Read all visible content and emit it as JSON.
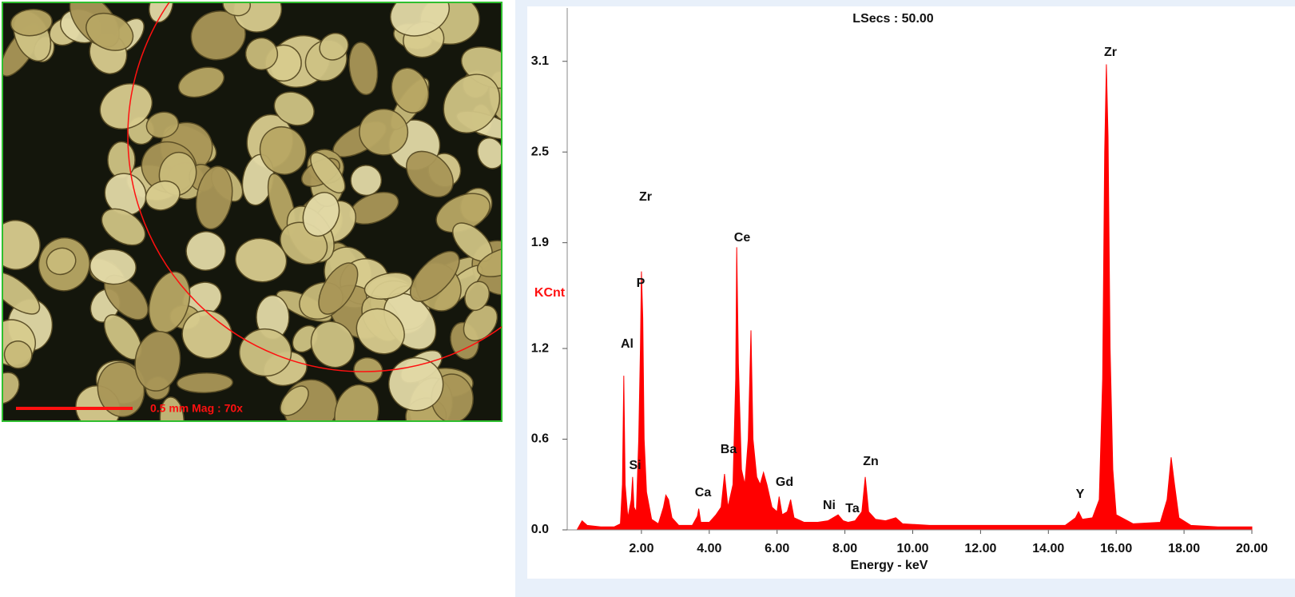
{
  "micrograph": {
    "scale_label": "0.5 mm  Mag : 70x"
  },
  "chart_data": {
    "type": "area",
    "title": "LSecs : 50.00",
    "ylabel": "KCnt",
    "xlabel": "Energy - keV",
    "x": [
      0.0,
      0.1,
      0.25,
      0.4,
      0.8,
      1.2,
      1.38,
      1.44,
      1.48,
      1.52,
      1.6,
      1.7,
      1.74,
      1.78,
      1.85,
      1.92,
      1.97,
      2.0,
      2.04,
      2.08,
      2.15,
      2.3,
      2.5,
      2.65,
      2.72,
      2.8,
      2.9,
      3.1,
      3.5,
      3.65,
      3.69,
      3.75,
      4.0,
      4.2,
      4.35,
      4.45,
      4.55,
      4.7,
      4.78,
      4.81,
      4.86,
      4.95,
      5.05,
      5.15,
      5.23,
      5.29,
      5.4,
      5.5,
      5.6,
      5.7,
      5.85,
      6.0,
      6.06,
      6.15,
      6.3,
      6.4,
      6.5,
      6.8,
      7.2,
      7.5,
      7.8,
      7.95,
      8.1,
      8.3,
      8.5,
      8.6,
      8.7,
      8.9,
      9.2,
      9.5,
      9.7,
      10.5,
      11.5,
      12.5,
      13.5,
      14.5,
      14.8,
      14.89,
      15.0,
      15.3,
      15.5,
      15.6,
      15.66,
      15.71,
      15.76,
      15.82,
      15.9,
      16.0,
      16.5,
      17.3,
      17.5,
      17.62,
      17.72,
      17.85,
      18.2,
      19.0,
      20.0
    ],
    "series": [
      {
        "name": "Spectrum",
        "color": "#ff0000",
        "values": [
          0,
          0.0,
          0.06,
          0.03,
          0.02,
          0.02,
          0.04,
          0.3,
          1.02,
          0.3,
          0.08,
          0.2,
          0.35,
          0.15,
          0.12,
          0.6,
          1.2,
          1.71,
          1.4,
          0.6,
          0.25,
          0.07,
          0.04,
          0.15,
          0.23,
          0.2,
          0.08,
          0.03,
          0.03,
          0.09,
          0.14,
          0.05,
          0.05,
          0.1,
          0.15,
          0.37,
          0.15,
          0.3,
          1.0,
          1.87,
          1.1,
          0.4,
          0.3,
          0.6,
          1.32,
          0.6,
          0.35,
          0.3,
          0.38,
          0.3,
          0.15,
          0.12,
          0.22,
          0.1,
          0.12,
          0.2,
          0.08,
          0.05,
          0.05,
          0.06,
          0.1,
          0.06,
          0.05,
          0.06,
          0.12,
          0.35,
          0.12,
          0.07,
          0.06,
          0.08,
          0.04,
          0.03,
          0.03,
          0.03,
          0.03,
          0.03,
          0.08,
          0.12,
          0.07,
          0.08,
          0.2,
          1.0,
          2.5,
          3.08,
          2.6,
          1.2,
          0.4,
          0.1,
          0.04,
          0.05,
          0.2,
          0.48,
          0.3,
          0.08,
          0.03,
          0.02,
          0.02
        ]
      }
    ],
    "annotations": [
      "Zr",
      "P",
      "Al",
      "Si",
      "Ca",
      "Ba",
      "Ce",
      "Gd",
      "Ni",
      "Ta",
      "Zn",
      "Y",
      "Zr"
    ],
    "xlim": [
      0,
      20
    ],
    "ylim": [
      0,
      3.4
    ],
    "xticks": [
      {
        "value": 2,
        "label": "2.00"
      },
      {
        "value": 4,
        "label": "4.00"
      },
      {
        "value": 6,
        "label": "6.00"
      },
      {
        "value": 8,
        "label": "8.00"
      },
      {
        "value": 10,
        "label": "10.00"
      },
      {
        "value": 12,
        "label": "12.00"
      },
      {
        "value": 14,
        "label": "14.00"
      },
      {
        "value": 16,
        "label": "16.00"
      },
      {
        "value": 18,
        "label": "18.00"
      },
      {
        "value": 20,
        "label": "20.00"
      }
    ],
    "yticks": [
      {
        "value": 0,
        "label": "0.0"
      },
      0.6,
      1.2,
      1.9,
      2.5,
      3.1
    ]
  }
}
